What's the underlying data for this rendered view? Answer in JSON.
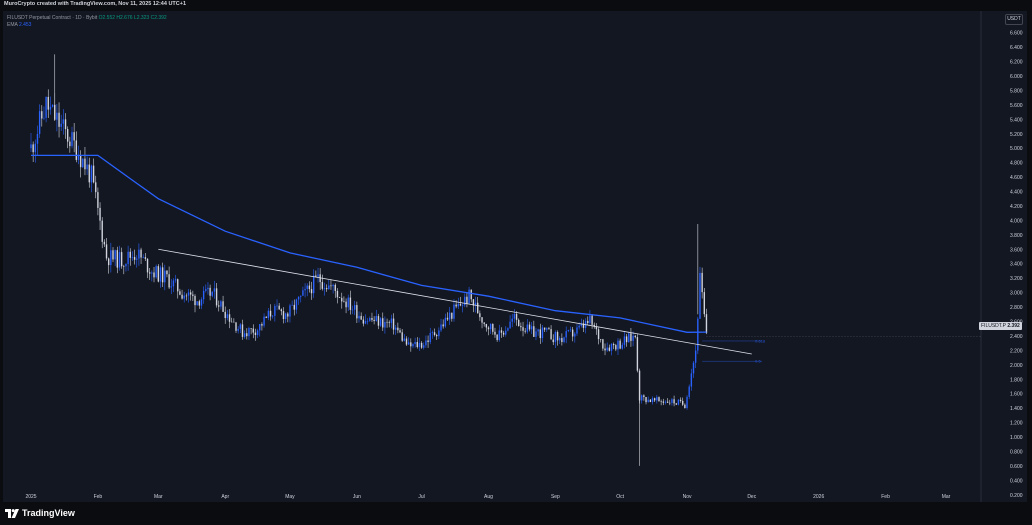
{
  "header": {
    "attribution": "MuroCrypto created with TradingView.com, Nov 11, 2025 12:44 UTC+1"
  },
  "legend": {
    "symbol_line": "FILUSDT Perpetual Contract · 1D · Bybit",
    "ohlc": "O2.552 H2.676 L2.323 C2.392",
    "ema_label": "EMA",
    "ema_value": "2.453"
  },
  "currency_label": "USDT",
  "price_tag": {
    "symbol": "FILUSDT.P",
    "price": "2.392"
  },
  "level_labels": {
    "upper": "0.618",
    "lower": "0.5"
  },
  "footer": {
    "brand": "TradingView"
  },
  "colors": {
    "background": "#131722",
    "up_candle": "#2962ff",
    "down_candle": "#d1d4dc",
    "ema_line": "#2962ff",
    "trendline": "#e0e3eb",
    "axis_text": "#d1d4dc"
  },
  "chart_data": {
    "type": "candlestick",
    "title": "FILUSDT Perpetual Contract · 1D · Bybit",
    "ylabel": "USDT",
    "ylim": [
      0.1,
      6.9
    ],
    "y_ticks": [
      "6.800",
      "6.600",
      "6.400",
      "6.200",
      "6.000",
      "5.800",
      "5.600",
      "5.400",
      "5.200",
      "5.000",
      "4.800",
      "4.600",
      "4.400",
      "4.200",
      "4.000",
      "3.800",
      "3.600",
      "3.400",
      "3.200",
      "3.000",
      "2.800",
      "2.600",
      "2.400",
      "2.200",
      "2.000",
      "1.800",
      "1.600",
      "1.400",
      "1.200",
      "1.000",
      "0.800",
      "0.600",
      "0.400",
      "0.200"
    ],
    "x_ticks": [
      "2025",
      "Feb",
      "Mar",
      "Apr",
      "May",
      "Jun",
      "Jul",
      "Aug",
      "Sep",
      "Oct",
      "Nov",
      "Dec",
      "2026",
      "Feb",
      "Mar"
    ],
    "price_path": [
      [
        "2025-01-01",
        5.0
      ],
      [
        "2025-01-08",
        5.6
      ],
      [
        "2025-01-15",
        5.3
      ],
      [
        "2025-01-22",
        5.0
      ],
      [
        "2025-01-29",
        4.6
      ],
      [
        "2025-02-05",
        3.5
      ],
      [
        "2025-02-12",
        3.45
      ],
      [
        "2025-02-19",
        3.55
      ],
      [
        "2025-02-26",
        3.3
      ],
      [
        "2025-03-05",
        3.2
      ],
      [
        "2025-03-12",
        3.0
      ],
      [
        "2025-03-19",
        2.9
      ],
      [
        "2025-03-26",
        3.0
      ],
      [
        "2025-04-02",
        2.7
      ],
      [
        "2025-04-09",
        2.45
      ],
      [
        "2025-04-16",
        2.5
      ],
      [
        "2025-04-23",
        2.75
      ],
      [
        "2025-04-30",
        2.7
      ],
      [
        "2025-05-07",
        2.95
      ],
      [
        "2025-05-14",
        3.2
      ],
      [
        "2025-05-21",
        3.05
      ],
      [
        "2025-05-28",
        2.85
      ],
      [
        "2025-06-04",
        2.65
      ],
      [
        "2025-06-11",
        2.6
      ],
      [
        "2025-06-18",
        2.55
      ],
      [
        "2025-06-25",
        2.25
      ],
      [
        "2025-07-02",
        2.3
      ],
      [
        "2025-07-09",
        2.5
      ],
      [
        "2025-07-16",
        2.75
      ],
      [
        "2025-07-23",
        2.95
      ],
      [
        "2025-07-30",
        2.6
      ],
      [
        "2025-08-06",
        2.4
      ],
      [
        "2025-08-13",
        2.65
      ],
      [
        "2025-08-20",
        2.45
      ],
      [
        "2025-08-27",
        2.45
      ],
      [
        "2025-09-03",
        2.35
      ],
      [
        "2025-09-10",
        2.45
      ],
      [
        "2025-09-17",
        2.6
      ],
      [
        "2025-09-24",
        2.25
      ],
      [
        "2025-10-01",
        2.3
      ],
      [
        "2025-10-08",
        2.4
      ],
      [
        "2025-10-10",
        1.55
      ],
      [
        "2025-10-17",
        1.5
      ],
      [
        "2025-10-24",
        1.5
      ],
      [
        "2025-10-31",
        1.45
      ],
      [
        "2025-11-05",
        2.2
      ],
      [
        "2025-11-07",
        3.2
      ],
      [
        "2025-11-10",
        2.392
      ]
    ],
    "notable_wicks": [
      {
        "date": "2025-10-10",
        "low": 0.6
      },
      {
        "date": "2025-11-06",
        "high": 3.95
      },
      {
        "date": "2025-01-12",
        "high": 6.3
      }
    ],
    "ema": {
      "name": "EMA",
      "points": [
        [
          "2025-01-01",
          4.9
        ],
        [
          "2025-02-01",
          4.9
        ],
        [
          "2025-02-15",
          4.6
        ],
        [
          "2025-03-01",
          4.3
        ],
        [
          "2025-04-01",
          3.85
        ],
        [
          "2025-05-01",
          3.55
        ],
        [
          "2025-06-01",
          3.35
        ],
        [
          "2025-07-01",
          3.1
        ],
        [
          "2025-08-01",
          2.95
        ],
        [
          "2025-09-01",
          2.75
        ],
        [
          "2025-10-01",
          2.65
        ],
        [
          "2025-11-01",
          2.45
        ],
        [
          "2025-11-10",
          2.453
        ]
      ]
    },
    "trendline": {
      "from": [
        "2025-03-01",
        3.6
      ],
      "to": [
        "2025-12-01",
        2.15
      ]
    },
    "levels": [
      {
        "label": "0.618",
        "value": 2.33,
        "from": "2025-11-08"
      },
      {
        "label": "0.5",
        "value": 2.05,
        "from": "2025-11-08"
      }
    ],
    "grid": false,
    "last_price": 2.392
  }
}
